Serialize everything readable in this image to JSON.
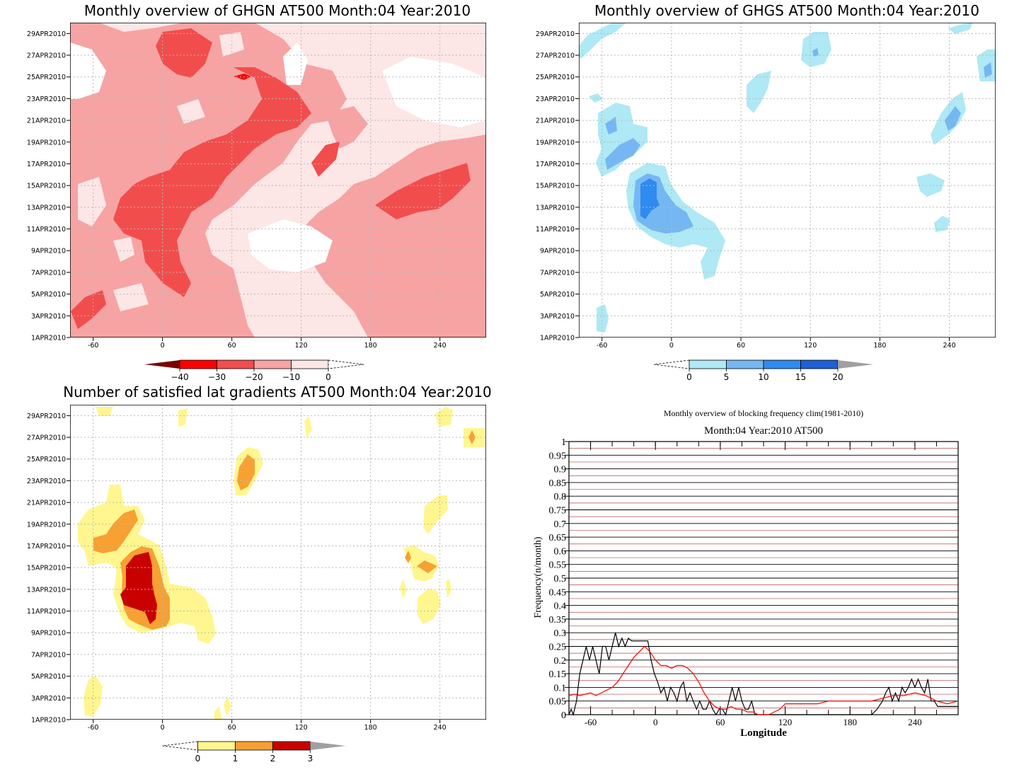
{
  "chart_data": [
    {
      "type": "heatmap",
      "title": "Monthly overview of GHGN AT500 Month:04 Year:2010",
      "x_ticks": [
        -60,
        0,
        60,
        120,
        180,
        240
      ],
      "x_range": [
        -80,
        280
      ],
      "y_ticks": [
        "1APR2010",
        "3APR2010",
        "5APR2010",
        "7APR2010",
        "9APR2010",
        "11APR2010",
        "13APR2010",
        "15APR2010",
        "17APR2010",
        "19APR2010",
        "21APR2010",
        "23APR2010",
        "25APR2010",
        "27APR2010",
        "29APR2010"
      ],
      "y_range": [
        1,
        30
      ],
      "colorbar": {
        "ticks": [
          "−40",
          "−30",
          "−20",
          "−10",
          "0"
        ],
        "colors": [
          "#ff0000",
          "#f24d4d",
          "#f7a3a3",
          "#fde6e6"
        ],
        "lower_extend": "#7a0000",
        "upper_extend": "#ffffff"
      },
      "background": "#ffffff",
      "regions": [
        {
          "level": "0 to -10",
          "color": "#fde6e6"
        },
        {
          "level": "-10 to -20",
          "color": "#f7a3a3"
        },
        {
          "level": "-20 to -30",
          "color": "#f24d4d"
        },
        {
          "level": "-30 to -40",
          "color": "#ff0000"
        }
      ]
    },
    {
      "type": "heatmap",
      "title": "Monthly overview of GHGS AT500 Month:04 Year:2010",
      "x_ticks": [
        -60,
        0,
        60,
        120,
        180,
        240
      ],
      "x_range": [
        -80,
        280
      ],
      "y_ticks": [
        "1APR2010",
        "3APR2010",
        "5APR2010",
        "7APR2010",
        "9APR2010",
        "11APR2010",
        "13APR2010",
        "15APR2010",
        "17APR2010",
        "19APR2010",
        "21APR2010",
        "23APR2010",
        "25APR2010",
        "27APR2010",
        "29APR2010"
      ],
      "y_range": [
        1,
        30
      ],
      "colorbar": {
        "ticks": [
          "0",
          "5",
          "10",
          "15",
          "20"
        ],
        "colors": [
          "#aee9f5",
          "#75b7f2",
          "#2e8bf0",
          "#1e60d6"
        ],
        "lower_extend": "#ffffff",
        "upper_extend": "#a0a0a0"
      },
      "background": "#ffffff",
      "regions": [
        {
          "level": "0 to 5",
          "color": "#aee9f5"
        },
        {
          "level": "5 to 10",
          "color": "#75b7f2"
        },
        {
          "level": "10 to 15",
          "color": "#2e8bf0"
        }
      ]
    },
    {
      "type": "heatmap",
      "title": "Number of satisfied lat gradients AT500 Month:04 Year:2010",
      "x_ticks": [
        -60,
        0,
        60,
        120,
        180,
        240
      ],
      "x_range": [
        -80,
        280
      ],
      "y_ticks": [
        "1APR2010",
        "3APR2010",
        "5APR2010",
        "7APR2010",
        "9APR2010",
        "11APR2010",
        "13APR2010",
        "15APR2010",
        "17APR2010",
        "19APR2010",
        "21APR2010",
        "23APR2010",
        "25APR2010",
        "27APR2010",
        "29APR2010"
      ],
      "y_range": [
        1,
        30
      ],
      "colorbar": {
        "ticks": [
          "0",
          "1",
          "2",
          "3"
        ],
        "colors": [
          "#fff68f",
          "#f7a033",
          "#c80000"
        ],
        "lower_extend": "#ffffff",
        "upper_extend": "#a0a0a0"
      },
      "background": "#ffffff",
      "regions": [
        {
          "level": "0 to 1",
          "color": "#fff68f"
        },
        {
          "level": "1 to 2",
          "color": "#f7a033"
        },
        {
          "level": "2 to 3",
          "color": "#c80000"
        }
      ]
    },
    {
      "type": "line",
      "title": "Monthly overview of blocking frequency clim(1981-2010)",
      "subtitle": "Month:04 Year:2010  AT500",
      "xlabel": "Longitude",
      "ylabel": "Frequency(n/month)",
      "xlim": [
        -80,
        280
      ],
      "ylim": [
        0,
        1
      ],
      "x_ticks": [
        -60,
        0,
        60,
        120,
        180,
        240
      ],
      "y_ticks": [
        "0",
        "0.05",
        "0.1",
        "0.15",
        "0.2",
        "0.25",
        "0.3",
        "0.35",
        "0.4",
        "0.45",
        "0.5",
        "0.55",
        "0.6",
        "0.65",
        "0.7",
        "0.75",
        "0.8",
        "0.85",
        "0.9",
        "0.95",
        "1"
      ],
      "grid": true,
      "series": [
        {
          "color": "#000000",
          "x": [
            -80,
            -78,
            -76,
            -73,
            -70,
            -67,
            -64,
            -61,
            -58,
            -55,
            -52,
            -49,
            -46,
            -43,
            -40,
            -37,
            -34,
            -31,
            -28,
            -25,
            -22,
            -19,
            -16,
            -13,
            -10,
            -7,
            -4,
            -1,
            2,
            5,
            8,
            11,
            14,
            17,
            20,
            23,
            26,
            29,
            32,
            35,
            38,
            41,
            44,
            47,
            50,
            53,
            56,
            59,
            62,
            65,
            68,
            71,
            74,
            77,
            80,
            83,
            86,
            89,
            92,
            95,
            100,
            110,
            120,
            130,
            140,
            150,
            160,
            170,
            180,
            190,
            200,
            205,
            210,
            213,
            216,
            219,
            222,
            225,
            228,
            231,
            234,
            237,
            240,
            243,
            246,
            249,
            252,
            255,
            258,
            261,
            264,
            270,
            275,
            280
          ],
          "y": [
            0,
            0.02,
            0,
            0.05,
            0.15,
            0.2,
            0.25,
            0.2,
            0.25,
            0.2,
            0.15,
            0.25,
            0.25,
            0.2,
            0.25,
            0.3,
            0.25,
            0.28,
            0.25,
            0.28,
            0.27,
            0.27,
            0.27,
            0.27,
            0.27,
            0.27,
            0.2,
            0.15,
            0.12,
            0.08,
            0.1,
            0.05,
            0.1,
            0.08,
            0.05,
            0.1,
            0.12,
            0.05,
            0.08,
            0.05,
            0.02,
            0.05,
            0.02,
            0.02,
            0.05,
            0.02,
            0,
            0.02,
            0.02,
            0,
            0.05,
            0.1,
            0.05,
            0.1,
            0.05,
            0.02,
            0.02,
            0.05,
            0,
            0,
            0,
            0,
            0,
            0,
            0,
            0,
            0,
            0,
            0,
            0,
            0,
            0.02,
            0.05,
            0.08,
            0.1,
            0.05,
            0.08,
            0.05,
            0.1,
            0.08,
            0.1,
            0.13,
            0.1,
            0.13,
            0.1,
            0.08,
            0.13,
            0.05,
            0.05,
            0.03,
            0.03,
            0.03,
            0.03,
            0.03
          ]
        },
        {
          "color": "#ff0000",
          "x": [
            -80,
            -75,
            -70,
            -65,
            -60,
            -55,
            -50,
            -45,
            -40,
            -35,
            -30,
            -25,
            -20,
            -15,
            -10,
            -5,
            0,
            5,
            10,
            15,
            20,
            25,
            30,
            35,
            40,
            45,
            50,
            55,
            60,
            65,
            70,
            75,
            80,
            85,
            90,
            95,
            100,
            105,
            110,
            115,
            120,
            130,
            140,
            150,
            160,
            170,
            180,
            190,
            200,
            210,
            220,
            230,
            240,
            250,
            260,
            270,
            280
          ],
          "y": [
            0.07,
            0.075,
            0.07,
            0.075,
            0.08,
            0.07,
            0.08,
            0.09,
            0.1,
            0.12,
            0.15,
            0.18,
            0.21,
            0.23,
            0.25,
            0.23,
            0.2,
            0.18,
            0.18,
            0.17,
            0.18,
            0.18,
            0.17,
            0.15,
            0.12,
            0.08,
            0.05,
            0.03,
            0.02,
            0.02,
            0.03,
            0.02,
            0.02,
            0.01,
            0.01,
            0,
            0,
            0,
            0.01,
            0.02,
            0.04,
            0.04,
            0.04,
            0.04,
            0.05,
            0.05,
            0.05,
            0.05,
            0.05,
            0.06,
            0.07,
            0.07,
            0.08,
            0.07,
            0.05,
            0.04,
            0.05
          ]
        }
      ]
    }
  ]
}
